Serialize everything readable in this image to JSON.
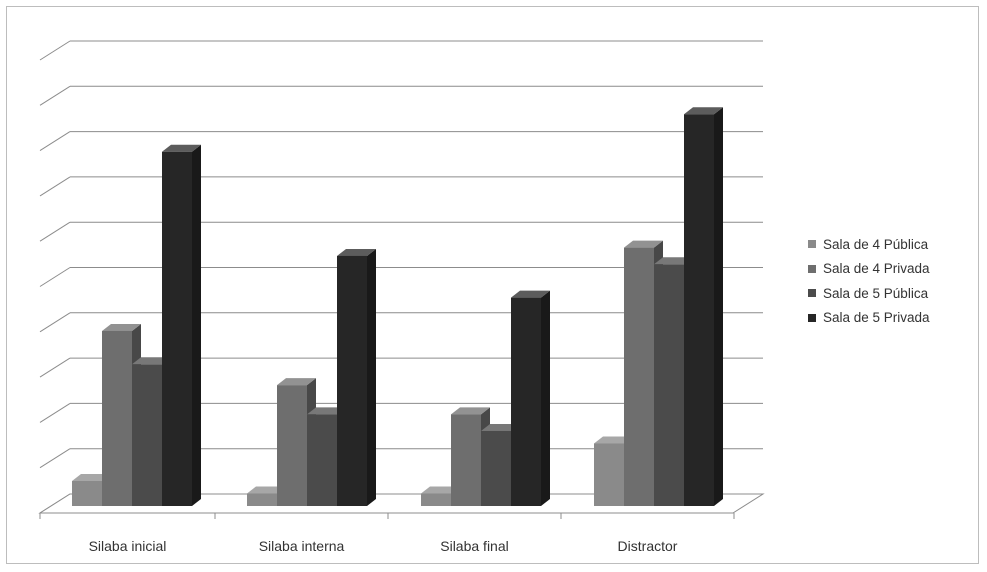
{
  "chart_data": {
    "type": "bar",
    "categories": [
      "Silaba inicial",
      "Silaba interna",
      "Silaba final",
      "Distractor"
    ],
    "series": [
      {
        "name": "Sala de 4 Pública",
        "values": [
          0.6,
          0.3,
          0.3,
          1.5
        ],
        "color": "#8a8a8a"
      },
      {
        "name": "Sala de 4 Privada",
        "values": [
          4.2,
          2.9,
          2.2,
          6.2
        ],
        "color": "#6e6e6e"
      },
      {
        "name": "Sala de 5 Pública",
        "values": [
          3.4,
          2.2,
          1.8,
          5.8
        ],
        "color": "#4b4b4b"
      },
      {
        "name": "Sala de 5 Privada",
        "values": [
          8.5,
          6.0,
          5.0,
          9.4
        ],
        "color": "#262626"
      }
    ],
    "ylim": [
      0,
      10
    ],
    "grid": true,
    "legend_position": "right",
    "y_tick_labels_shown": false
  }
}
